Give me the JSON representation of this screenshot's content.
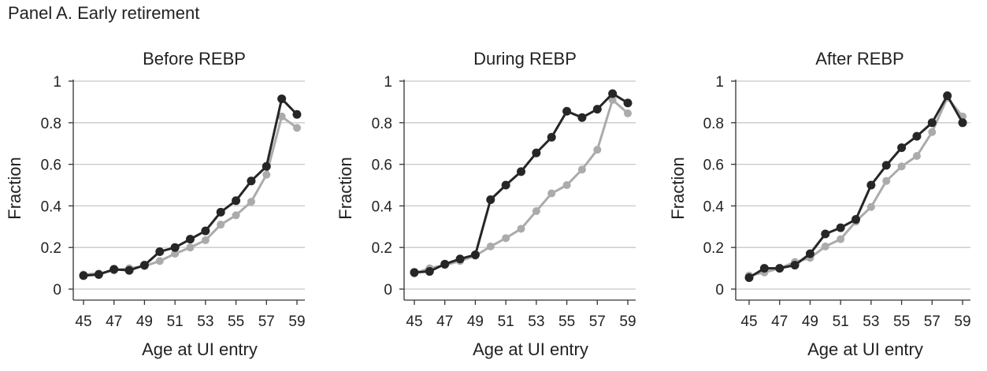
{
  "panel_title": "Panel A. Early retirement",
  "colors": {
    "treated": "#262626",
    "control": "#ababab",
    "grid": "#c8c8c8",
    "axis": "#333333"
  },
  "chart_data": [
    {
      "type": "line",
      "title": "Before REBP",
      "xlabel": "Age at UI entry",
      "ylabel": "Fraction",
      "x": [
        45,
        46,
        47,
        48,
        49,
        50,
        51,
        52,
        53,
        54,
        55,
        56,
        57,
        58,
        59
      ],
      "xticks": [
        "45",
        "47",
        "49",
        "51",
        "53",
        "55",
        "57",
        "59"
      ],
      "yticks": [
        "0",
        "0.2",
        "0.4",
        "0.6",
        "0.8",
        "1"
      ],
      "ylim": [
        0,
        1
      ],
      "grid": true,
      "series": [
        {
          "style": "gray-line",
          "values": [
            0.07,
            0.075,
            0.09,
            0.1,
            0.11,
            0.135,
            0.17,
            0.2,
            0.235,
            0.31,
            0.355,
            0.42,
            0.55,
            0.83,
            0.775
          ]
        },
        {
          "style": "black-line-dots",
          "values": [
            0.065,
            0.07,
            0.095,
            0.09,
            0.115,
            0.18,
            0.2,
            0.24,
            0.28,
            0.37,
            0.425,
            0.52,
            0.59,
            0.915,
            0.84
          ]
        }
      ]
    },
    {
      "type": "line",
      "title": "During REBP",
      "xlabel": "Age at UI entry",
      "ylabel": "Fraction",
      "x": [
        45,
        46,
        47,
        48,
        49,
        50,
        51,
        52,
        53,
        54,
        55,
        56,
        57,
        58,
        59
      ],
      "xticks": [
        "45",
        "47",
        "49",
        "51",
        "53",
        "55",
        "57",
        "59"
      ],
      "yticks": [
        "0",
        "0.2",
        "0.4",
        "0.6",
        "0.8",
        "1"
      ],
      "ylim": [
        0,
        1
      ],
      "grid": true,
      "series": [
        {
          "style": "gray-line",
          "values": [
            0.075,
            0.1,
            0.115,
            0.135,
            0.16,
            0.205,
            0.245,
            0.29,
            0.375,
            0.46,
            0.5,
            0.575,
            0.67,
            0.91,
            0.845
          ]
        },
        {
          "style": "black-line-dots",
          "values": [
            0.08,
            0.085,
            0.12,
            0.145,
            0.165,
            0.43,
            0.5,
            0.565,
            0.655,
            0.73,
            0.855,
            0.825,
            0.865,
            0.94,
            0.895
          ]
        }
      ]
    },
    {
      "type": "line",
      "title": "After REBP",
      "xlabel": "Age at UI entry",
      "ylabel": "Fraction",
      "x": [
        45,
        46,
        47,
        48,
        49,
        50,
        51,
        52,
        53,
        54,
        55,
        56,
        57,
        58,
        59
      ],
      "xticks": [
        "45",
        "47",
        "49",
        "51",
        "53",
        "55",
        "57",
        "59"
      ],
      "yticks": [
        "0",
        "0.2",
        "0.4",
        "0.6",
        "0.8",
        "1"
      ],
      "ylim": [
        0,
        1
      ],
      "grid": true,
      "series": [
        {
          "style": "gray-line",
          "values": [
            0.065,
            0.08,
            0.1,
            0.13,
            0.15,
            0.205,
            0.24,
            0.325,
            0.395,
            0.52,
            0.59,
            0.64,
            0.755,
            0.92,
            0.83
          ]
        },
        {
          "style": "black-line-dots",
          "values": [
            0.055,
            0.1,
            0.1,
            0.115,
            0.17,
            0.265,
            0.295,
            0.335,
            0.5,
            0.595,
            0.68,
            0.735,
            0.8,
            0.93,
            0.8
          ]
        }
      ]
    }
  ]
}
